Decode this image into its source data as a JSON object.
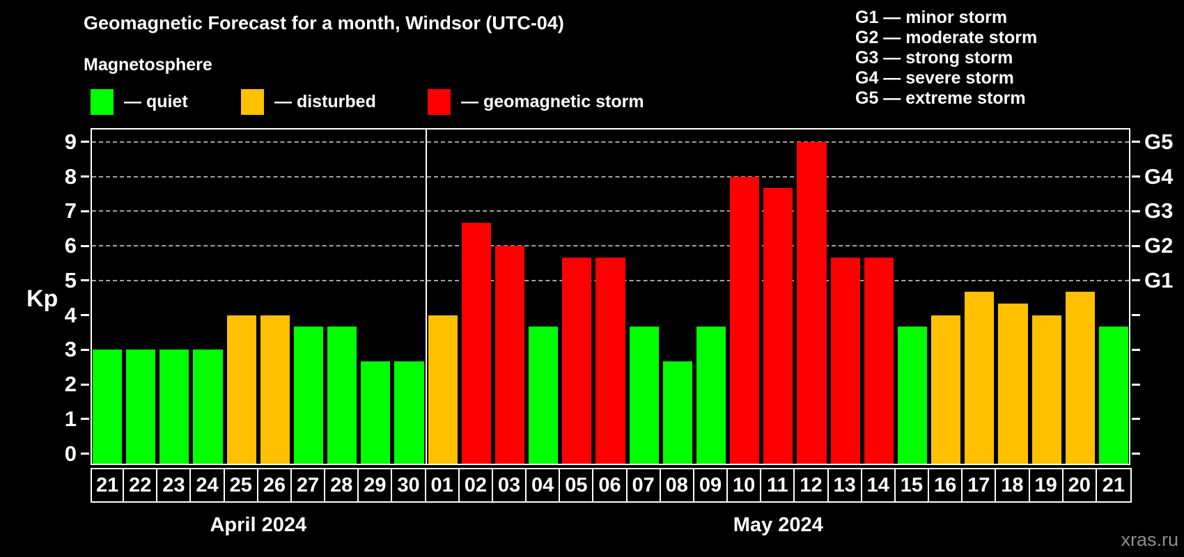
{
  "header": {
    "title": "Geomagnetic Forecast for a month, Windsor (UTC-04)",
    "subtitle": "Magnetosphere"
  },
  "legend": {
    "items": [
      {
        "name": "quiet",
        "label": "— quiet",
        "color": "#00ff00"
      },
      {
        "name": "disturbed",
        "label": "— disturbed",
        "color": "#ffc000"
      },
      {
        "name": "storm",
        "label": "— geomagnetic storm",
        "color": "#ff0000"
      }
    ]
  },
  "g_legend": {
    "lines": [
      "G1 — minor storm",
      "G2 — moderate storm",
      "G3 — strong storm",
      "G4 — severe storm",
      "G5 — extreme storm"
    ]
  },
  "watermark": "xras.ru",
  "chart_data": {
    "type": "bar",
    "title": "Geomagnetic Forecast for a month, Windsor (UTC-04)",
    "ylabel": "Kp",
    "ylim": [
      0,
      9
    ],
    "yticks": [
      0,
      1,
      2,
      3,
      4,
      5,
      6,
      7,
      8,
      9
    ],
    "gridlines_at": [
      5,
      6,
      7,
      8,
      9
    ],
    "grid": true,
    "background": "#000000",
    "legend_position": "top-left",
    "right_axis_labels": [
      {
        "kp": 5,
        "label": "G1"
      },
      {
        "kp": 6,
        "label": "G2"
      },
      {
        "kp": 7,
        "label": "G3"
      },
      {
        "kp": 8,
        "label": "G4"
      },
      {
        "kp": 9,
        "label": "G5"
      }
    ],
    "colors": {
      "quiet": "#00ff00",
      "disturbed": "#ffc000",
      "storm": "#ff0000"
    },
    "months": [
      {
        "label": "April 2024",
        "days": 10
      },
      {
        "label": "May 2024",
        "days": 21
      }
    ],
    "bars": [
      {
        "month": "April",
        "day": "21",
        "kp": 3.0,
        "status": "quiet"
      },
      {
        "month": "April",
        "day": "22",
        "kp": 3.0,
        "status": "quiet"
      },
      {
        "month": "April",
        "day": "23",
        "kp": 3.0,
        "status": "quiet"
      },
      {
        "month": "April",
        "day": "24",
        "kp": 3.0,
        "status": "quiet"
      },
      {
        "month": "April",
        "day": "25",
        "kp": 4.0,
        "status": "disturbed"
      },
      {
        "month": "April",
        "day": "26",
        "kp": 4.0,
        "status": "disturbed"
      },
      {
        "month": "April",
        "day": "27",
        "kp": 3.67,
        "status": "quiet"
      },
      {
        "month": "April",
        "day": "28",
        "kp": 3.67,
        "status": "quiet"
      },
      {
        "month": "April",
        "day": "29",
        "kp": 2.67,
        "status": "quiet"
      },
      {
        "month": "April",
        "day": "30",
        "kp": 2.67,
        "status": "quiet"
      },
      {
        "month": "May",
        "day": "01",
        "kp": 4.0,
        "status": "disturbed"
      },
      {
        "month": "May",
        "day": "02",
        "kp": 6.67,
        "status": "storm"
      },
      {
        "month": "May",
        "day": "03",
        "kp": 6.0,
        "status": "storm"
      },
      {
        "month": "May",
        "day": "04",
        "kp": 3.67,
        "status": "quiet"
      },
      {
        "month": "May",
        "day": "05",
        "kp": 5.67,
        "status": "storm"
      },
      {
        "month": "May",
        "day": "06",
        "kp": 5.67,
        "status": "storm"
      },
      {
        "month": "May",
        "day": "07",
        "kp": 3.67,
        "status": "quiet"
      },
      {
        "month": "May",
        "day": "08",
        "kp": 2.67,
        "status": "quiet"
      },
      {
        "month": "May",
        "day": "09",
        "kp": 3.67,
        "status": "quiet"
      },
      {
        "month": "May",
        "day": "10",
        "kp": 8.0,
        "status": "storm"
      },
      {
        "month": "May",
        "day": "11",
        "kp": 7.67,
        "status": "storm"
      },
      {
        "month": "May",
        "day": "12",
        "kp": 9.0,
        "status": "storm"
      },
      {
        "month": "May",
        "day": "13",
        "kp": 5.67,
        "status": "storm"
      },
      {
        "month": "May",
        "day": "14",
        "kp": 5.67,
        "status": "storm"
      },
      {
        "month": "May",
        "day": "15",
        "kp": 3.67,
        "status": "quiet"
      },
      {
        "month": "May",
        "day": "16",
        "kp": 4.0,
        "status": "disturbed"
      },
      {
        "month": "May",
        "day": "17",
        "kp": 4.67,
        "status": "disturbed"
      },
      {
        "month": "May",
        "day": "18",
        "kp": 4.33,
        "status": "disturbed"
      },
      {
        "month": "May",
        "day": "19",
        "kp": 4.0,
        "status": "disturbed"
      },
      {
        "month": "May",
        "day": "20",
        "kp": 4.67,
        "status": "disturbed"
      },
      {
        "month": "May",
        "day": "21",
        "kp": 3.67,
        "status": "quiet"
      }
    ]
  }
}
